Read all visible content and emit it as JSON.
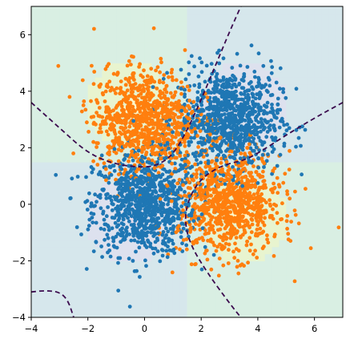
{
  "chart_data": {
    "type": "scatter",
    "title": "",
    "xlabel": "",
    "ylabel": "",
    "xlim": [
      -4,
      7
    ],
    "ylim": [
      -4,
      7
    ],
    "x_ticks": [
      -4,
      -2,
      0,
      2,
      4,
      6
    ],
    "y_ticks": [
      -4,
      -2,
      0,
      2,
      4,
      6
    ],
    "x_tick_labels": [
      "−4",
      "−2",
      "0",
      "2",
      "4",
      "6"
    ],
    "y_tick_labels": [
      "−4",
      "−2",
      "0",
      "2",
      "4",
      "6"
    ],
    "grid": false,
    "legend": "none",
    "background": "filled contour (viridis-like, low alpha)",
    "series": [
      {
        "color": "#1f77b4",
        "clusters": [
          {
            "center": [
              0,
              0
            ],
            "std": [
              0.9,
              0.9
            ],
            "approx_points": 900
          },
          {
            "center": [
              3,
              3
            ],
            "std": [
              0.9,
              0.9
            ],
            "approx_points": 900
          }
        ]
      },
      {
        "color": "#ff7f0e",
        "clusters": [
          {
            "center": [
              0,
              3
            ],
            "std": [
              0.9,
              0.9
            ],
            "approx_points": 900
          },
          {
            "center": [
              3,
              0
            ],
            "std": [
              0.9,
              0.9
            ],
            "approx_points": 900
          }
        ]
      }
    ],
    "decision_boundary": {
      "style": "dashed",
      "color": "#3b0a4e",
      "curves": [
        {
          "points": [
            [
              -4,
              3.6
            ],
            [
              -3,
              2.7
            ],
            [
              -2,
              1.8
            ],
            [
              -1,
              1.4
            ],
            [
              0,
              1.3
            ],
            [
              0.5,
              1.4
            ],
            [
              1,
              1.75
            ],
            [
              1.5,
              2.6
            ],
            [
              2,
              3.7
            ],
            [
              2.5,
              4.9
            ],
            [
              3,
              6.1
            ],
            [
              3.4,
              7
            ]
          ]
        },
        {
          "points": [
            [
              7,
              3.6
            ],
            [
              6,
              3.05
            ],
            [
              5,
              2.45
            ],
            [
              4,
              1.8
            ],
            [
              3.5,
              1.55
            ],
            [
              3,
              1.45
            ],
            [
              2.5,
              1.25
            ],
            [
              2,
              0.9
            ],
            [
              1.6,
              0.3
            ],
            [
              1.4,
              -0.5
            ],
            [
              1.6,
              -1.4
            ],
            [
              2.2,
              -2.4
            ],
            [
              3,
              -3.5
            ],
            [
              3.4,
              -4
            ]
          ]
        },
        {
          "points": [
            [
              -4,
              -3.1
            ],
            [
              -3.5,
              -3.05
            ],
            [
              -3,
              -3.1
            ],
            [
              -2.7,
              -3.4
            ],
            [
              -2.5,
              -4
            ]
          ]
        }
      ]
    }
  }
}
